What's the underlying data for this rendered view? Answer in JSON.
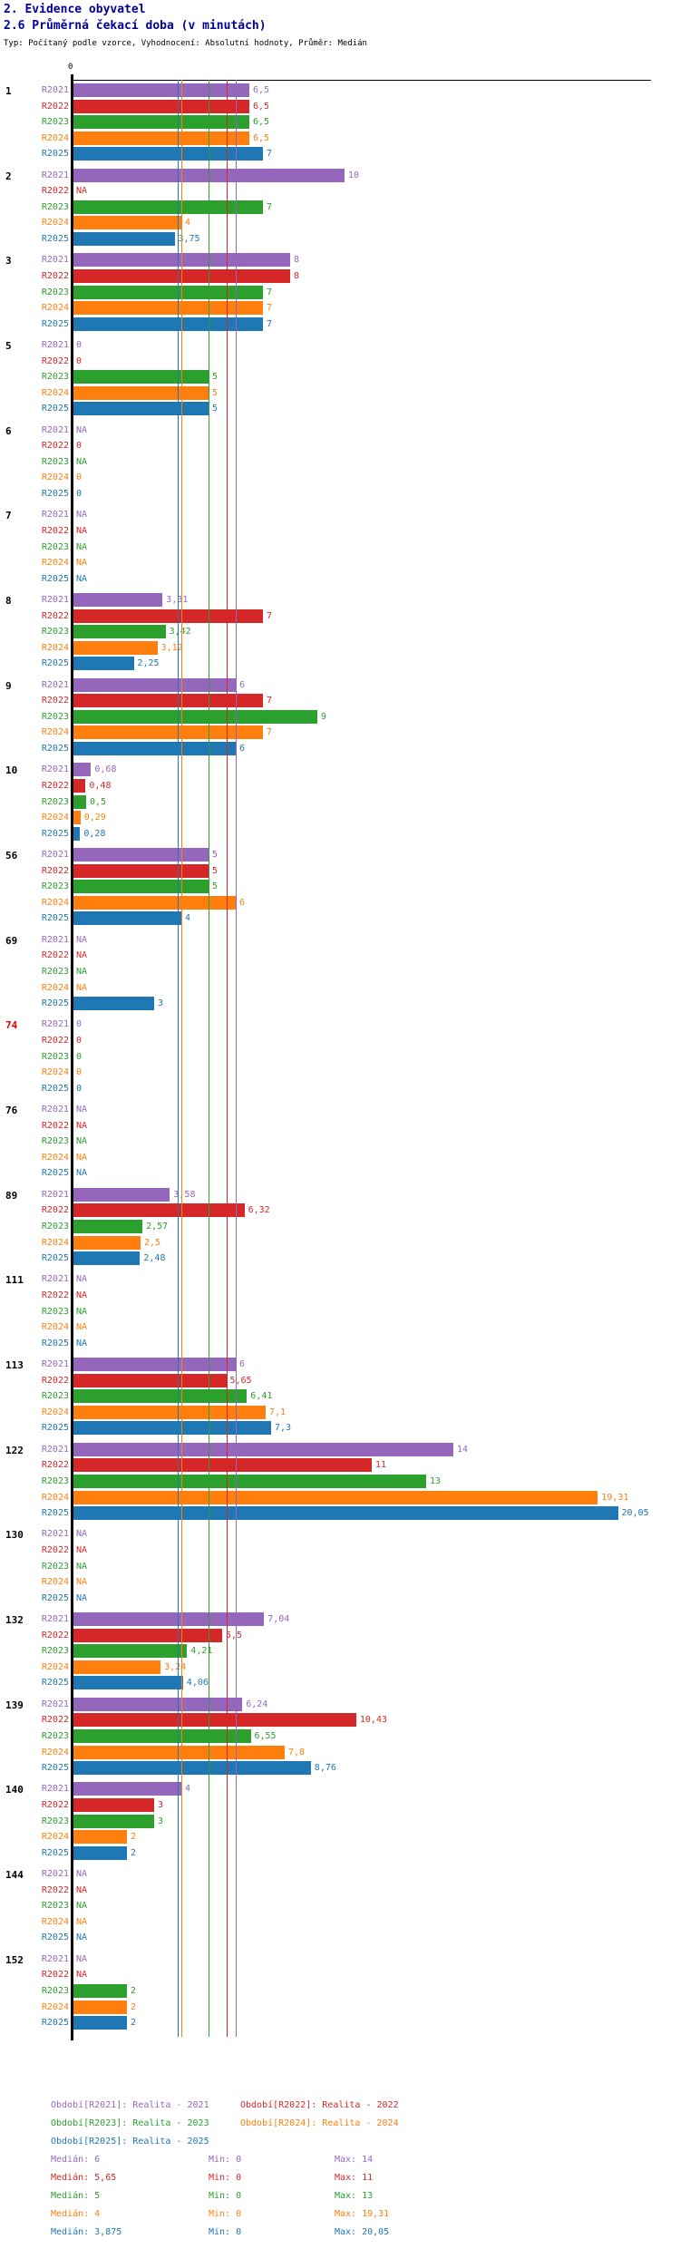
{
  "header": {
    "line1": "2. Evidence obyvatel",
    "line2": "2.6 Průměrná čekací doba (v minutách)",
    "line3": "Typ: Počítaný podle vzorce, Vyhodnocení: Absolutní hodnoty, Průměr: Medián"
  },
  "chart_data": {
    "type": "bar",
    "orientation": "horizontal",
    "title": "2.6 Průměrná čekací doba (v minutách)",
    "axis_zero_label": "0",
    "series": [
      "R2021",
      "R2022",
      "R2023",
      "R2024",
      "R2025"
    ],
    "colors": {
      "R2021": "#9467bd",
      "R2022": "#d62728",
      "R2023": "#2ca02c",
      "R2024": "#ff7f0e",
      "R2025": "#1f77b4"
    },
    "groups": [
      {
        "label": "1",
        "values": [
          "6,5",
          "6,5",
          "6,5",
          "6,5",
          "7"
        ]
      },
      {
        "label": "2",
        "values": [
          "10",
          "NA",
          "7",
          "4",
          "3,75"
        ]
      },
      {
        "label": "3",
        "values": [
          "8",
          "8",
          "7",
          "7",
          "7"
        ]
      },
      {
        "label": "5",
        "values": [
          "0",
          "0",
          "5",
          "5",
          "5"
        ]
      },
      {
        "label": "6",
        "values": [
          "NA",
          "0",
          "NA",
          "0",
          "0"
        ]
      },
      {
        "label": "7",
        "values": [
          "NA",
          "NA",
          "NA",
          "NA",
          "NA"
        ]
      },
      {
        "label": "8",
        "values": [
          "3,31",
          "7",
          "3,42",
          "3,12",
          "2,25"
        ]
      },
      {
        "label": "9",
        "values": [
          "6",
          "7",
          "9",
          "7",
          "6"
        ]
      },
      {
        "label": "10",
        "values": [
          "0,68",
          "0,48",
          "0,5",
          "0,29",
          "0,28"
        ]
      },
      {
        "label": "56",
        "values": [
          "5",
          "5",
          "5",
          "6",
          "4"
        ]
      },
      {
        "label": "69",
        "values": [
          "NA",
          "NA",
          "NA",
          "NA",
          "3"
        ]
      },
      {
        "label": "74",
        "color": "#dd0000",
        "values": [
          "0",
          "0",
          "0",
          "0",
          "0"
        ]
      },
      {
        "label": "76",
        "values": [
          "NA",
          "NA",
          "NA",
          "NA",
          "NA"
        ]
      },
      {
        "label": "89",
        "values": [
          "3,58",
          "6,32",
          "2,57",
          "2,5",
          "2,48"
        ]
      },
      {
        "label": "111",
        "values": [
          "NA",
          "NA",
          "NA",
          "NA",
          "NA"
        ]
      },
      {
        "label": "113",
        "values": [
          "6",
          "5,65",
          "6,41",
          "7,1",
          "7,3"
        ]
      },
      {
        "label": "122",
        "values": [
          "14",
          "11",
          "13",
          "19,31",
          "20,05"
        ]
      },
      {
        "label": "130",
        "values": [
          "NA",
          "NA",
          "NA",
          "NA",
          "NA"
        ]
      },
      {
        "label": "132",
        "values": [
          "7,04",
          "5,5",
          "4,21",
          "3,24",
          "4,06"
        ]
      },
      {
        "label": "139",
        "values": [
          "6,24",
          "10,43",
          "6,55",
          "7,8",
          "8,76"
        ]
      },
      {
        "label": "140",
        "values": [
          "4",
          "3",
          "3",
          "2",
          "2"
        ]
      },
      {
        "label": "144",
        "values": [
          "NA",
          "NA",
          "NA",
          "NA",
          "NA"
        ]
      },
      {
        "label": "152",
        "values": [
          "NA",
          "NA",
          "2",
          "2",
          "2"
        ]
      }
    ],
    "medians": [
      {
        "series": "R2021",
        "value": 6
      },
      {
        "series": "R2022",
        "value": 5.65
      },
      {
        "series": "R2023",
        "value": 5
      },
      {
        "series": "R2024",
        "value": 4
      },
      {
        "series": "R2025",
        "value": 3.875
      }
    ]
  },
  "legend": {
    "items": [
      {
        "series": "R2021",
        "label": "Období[R2021]: Realita - 2021"
      },
      {
        "series": "R2022",
        "label": "Období[R2022]: Realita - 2022"
      },
      {
        "series": "R2023",
        "label": "Období[R2023]: Realita - 2023"
      },
      {
        "series": "R2024",
        "label": "Období[R2024]: Realita - 2024"
      },
      {
        "series": "R2025",
        "label": "Období[R2025]: Realita - 2025"
      }
    ]
  },
  "stats": {
    "rows": [
      {
        "series": "R2021",
        "median": "Medián: 6",
        "min": "Min: 0",
        "max": "Max: 14"
      },
      {
        "series": "R2022",
        "median": "Medián: 5,65",
        "min": "Min: 0",
        "max": "Max: 11"
      },
      {
        "series": "R2023",
        "median": "Medián: 5",
        "min": "Min: 0",
        "max": "Max: 13"
      },
      {
        "series": "R2024",
        "median": "Medián: 4",
        "min": "Min: 0",
        "max": "Max: 19,31"
      },
      {
        "series": "R2025",
        "median": "Medián: 3,875",
        "min": "Min: 0",
        "max": "Max: 20,05"
      }
    ]
  }
}
